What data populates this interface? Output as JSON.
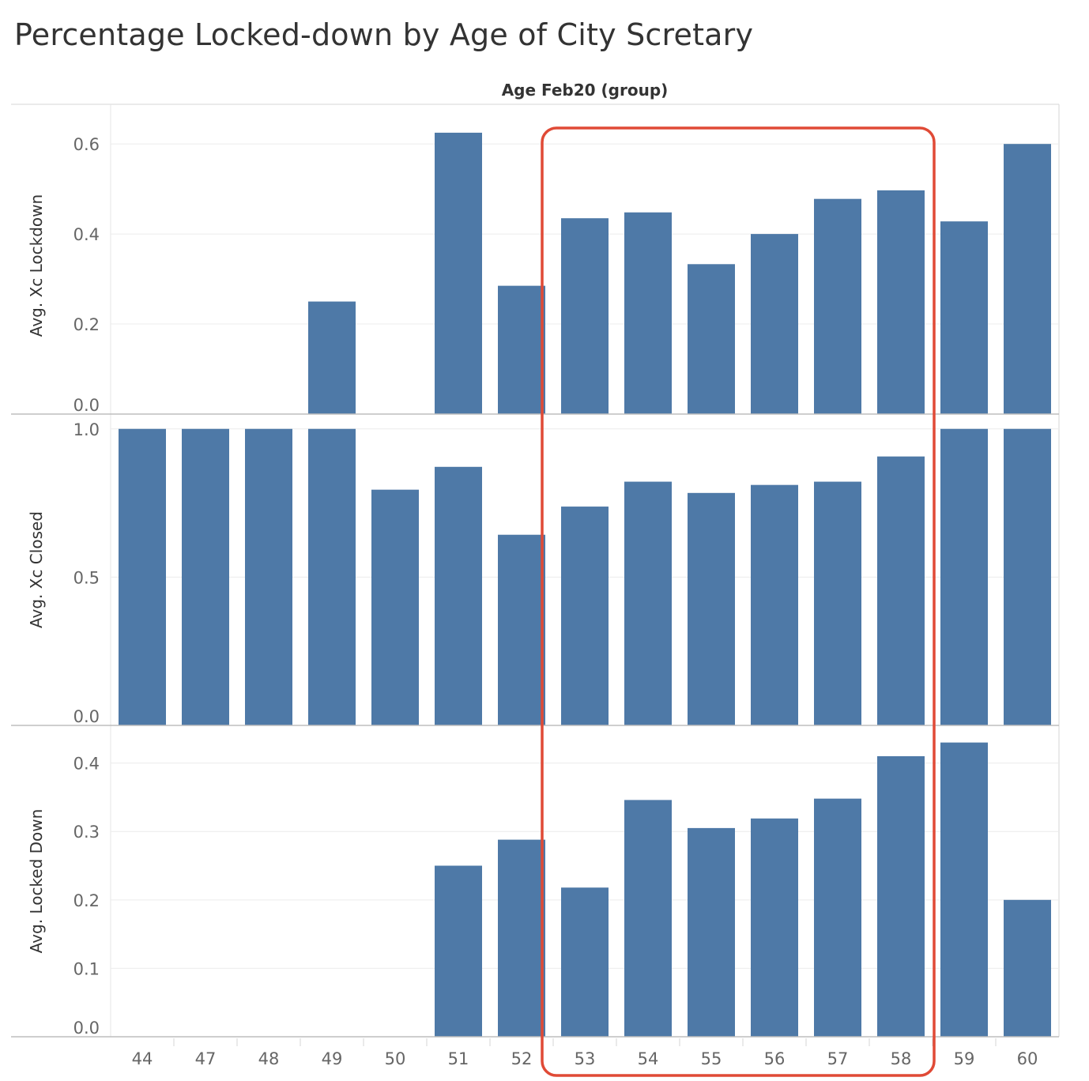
{
  "title": "Percentage Locked-down by Age of City Scretary",
  "chart_data": {
    "type": "bar",
    "column_header": "Age Feb20 (group)",
    "categories": [
      "44",
      "47",
      "48",
      "49",
      "50",
      "51",
      "52",
      "53",
      "54",
      "55",
      "56",
      "57",
      "58",
      "59",
      "60"
    ],
    "panels": [
      {
        "ylabel": "Avg. Xc Lockdown",
        "ylim": [
          0,
          0.66
        ],
        "yticks": [
          0.0,
          0.2,
          0.4,
          0.6
        ],
        "ytick_labels": [
          "0.0",
          "0.2",
          "0.4",
          "0.6"
        ],
        "values": [
          null,
          null,
          null,
          0.25,
          null,
          0.625,
          0.285,
          0.435,
          0.448,
          0.333,
          0.4,
          0.478,
          0.497,
          0.428,
          0.6
        ]
      },
      {
        "ylabel": "Avg. Xc Closed",
        "ylim": [
          0,
          1.05
        ],
        "yticks": [
          0.0,
          0.5,
          1.0
        ],
        "ytick_labels": [
          "0.0",
          "0.5",
          "1.0"
        ],
        "values": [
          1.0,
          1.0,
          1.0,
          1.0,
          0.795,
          0.872,
          0.643,
          0.738,
          0.822,
          0.784,
          0.811,
          0.822,
          0.907,
          1.0,
          1.0
        ]
      },
      {
        "ylabel": "Avg. Locked Down",
        "ylim": [
          0,
          0.455
        ],
        "yticks": [
          0.0,
          0.1,
          0.2,
          0.3,
          0.4
        ],
        "ytick_labels": [
          "0.0",
          "0.1",
          "0.2",
          "0.3",
          "0.4"
        ],
        "values": [
          null,
          null,
          null,
          null,
          null,
          0.25,
          0.288,
          0.218,
          0.346,
          0.305,
          0.319,
          0.348,
          0.41,
          0.43,
          0.2
        ]
      }
    ],
    "highlight": {
      "from": "53",
      "to": "58",
      "color": "#e04a36"
    },
    "bar_color": "#4e79a7",
    "grid": true
  }
}
